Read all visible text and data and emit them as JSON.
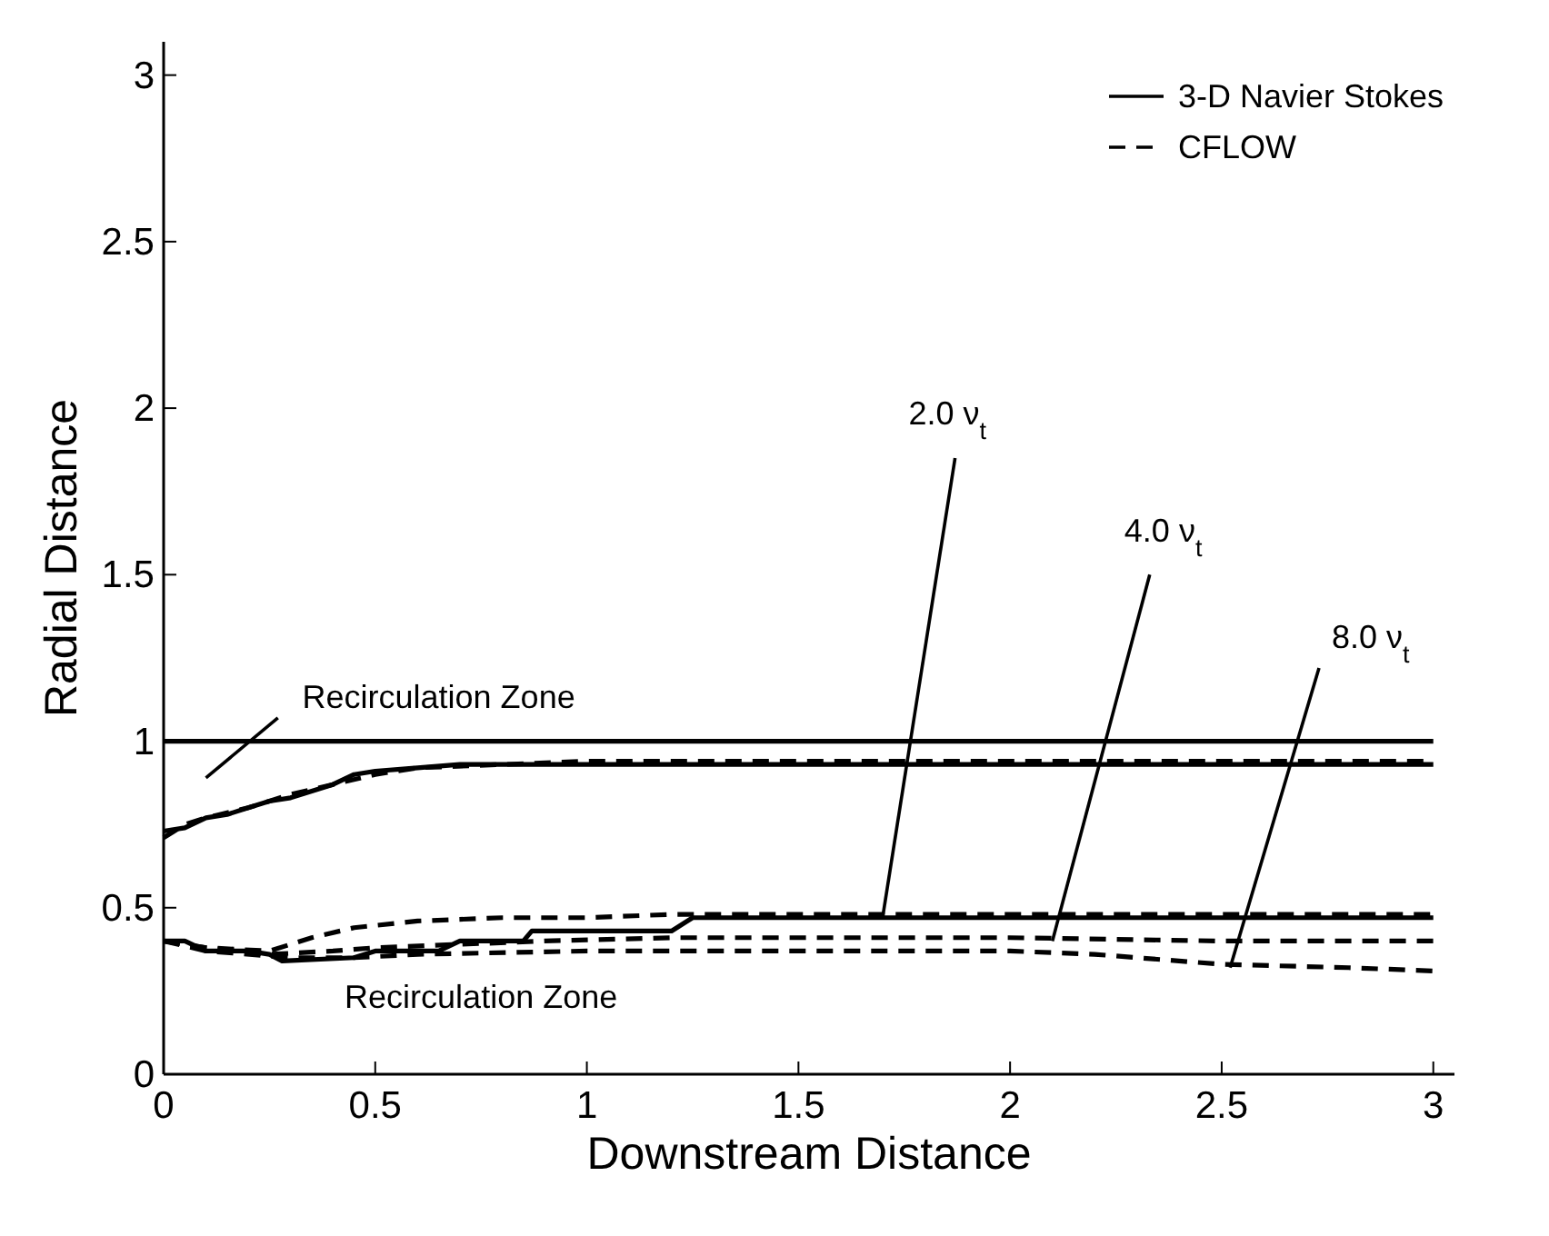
{
  "chart_data": {
    "type": "line",
    "xlabel": "Downstream Distance",
    "ylabel": "Radial Distance",
    "xlim": [
      0,
      3.05
    ],
    "ylim": [
      0,
      3.1
    ],
    "xticks": [
      0,
      0.5,
      1,
      1.5,
      2,
      2.5,
      3
    ],
    "yticks": [
      0,
      0.5,
      1,
      1.5,
      2,
      2.5,
      3
    ],
    "grid": false,
    "legend": "top right",
    "marker": "none",
    "series": [
      {
        "name": "3-D Navier Stokes",
        "color": "#000000",
        "line_style": "solid",
        "x": [
          0,
          3
        ],
        "values": [
          1,
          1
        ]
      },
      {
        "color": "#000000",
        "line_style": "solid",
        "x": [
          0,
          0.05,
          0.1,
          0.15,
          0.2,
          0.25,
          0.3,
          0.35,
          0.4,
          0.45,
          0.5,
          0.6,
          0.7,
          1,
          2,
          3
        ],
        "values": [
          0.73,
          0.74,
          0.77,
          0.78,
          0.8,
          0.82,
          0.83,
          0.85,
          0.87,
          0.9,
          0.91,
          0.92,
          0.93,
          0.93,
          0.93,
          0.93
        ]
      },
      {
        "name": "CFLOW",
        "color": "#000000",
        "line_style": "dashed",
        "x": [
          0,
          0.05,
          0.1,
          0.2,
          0.3,
          0.4,
          0.5,
          0.6,
          0.8,
          1,
          2,
          3
        ],
        "values": [
          0.71,
          0.75,
          0.77,
          0.8,
          0.84,
          0.87,
          0.9,
          0.92,
          0.93,
          0.94,
          0.94,
          0.94
        ]
      },
      {
        "color": "#000000",
        "line_style": "solid",
        "x": [
          0,
          0.05,
          0.1,
          0.2,
          0.25,
          0.28,
          0.45,
          0.5,
          0.65,
          0.7,
          0.85,
          0.87,
          1.2,
          1.25,
          2,
          3
        ],
        "values": [
          0.4,
          0.4,
          0.37,
          0.37,
          0.36,
          0.34,
          0.35,
          0.37,
          0.37,
          0.4,
          0.4,
          0.43,
          0.43,
          0.47,
          0.47,
          0.47
        ]
      },
      {
        "color": "#000000",
        "line_style": "dashed",
        "x": [
          0,
          0.1,
          0.25,
          0.35,
          0.45,
          0.6,
          0.8,
          1,
          1.2,
          2,
          3
        ],
        "values": [
          0.4,
          0.38,
          0.37,
          0.41,
          0.44,
          0.46,
          0.47,
          0.47,
          0.48,
          0.48,
          0.48
        ]
      },
      {
        "color": "#000000",
        "line_style": "dashed",
        "x": [
          0,
          0.1,
          0.25,
          0.4,
          0.5,
          0.7,
          0.9,
          1.2,
          1.6,
          2,
          2.5,
          3
        ],
        "values": [
          0.4,
          0.38,
          0.36,
          0.37,
          0.38,
          0.39,
          0.4,
          0.41,
          0.41,
          0.41,
          0.4,
          0.4
        ]
      },
      {
        "color": "#000000",
        "line_style": "dashed",
        "x": [
          0,
          0.1,
          0.3,
          0.45,
          0.6,
          1,
          1.5,
          2,
          2.2,
          2.5,
          2.8,
          3
        ],
        "values": [
          0.4,
          0.37,
          0.35,
          0.35,
          0.36,
          0.37,
          0.37,
          0.37,
          0.36,
          0.33,
          0.32,
          0.31
        ]
      }
    ],
    "annotations": [
      "Recirculation Zone",
      "Recirculation Zone",
      {
        "text": "2.0 ν$_{t}$",
        "x": 1.7,
        "y": 0.48
      },
      {
        "text": "4.0 ν$_{t}$",
        "x": 2.1,
        "y": 0.4
      },
      {
        "text": "8.0 ν$_{t}$",
        "x": 2.52,
        "y": 0.32
      }
    ]
  }
}
